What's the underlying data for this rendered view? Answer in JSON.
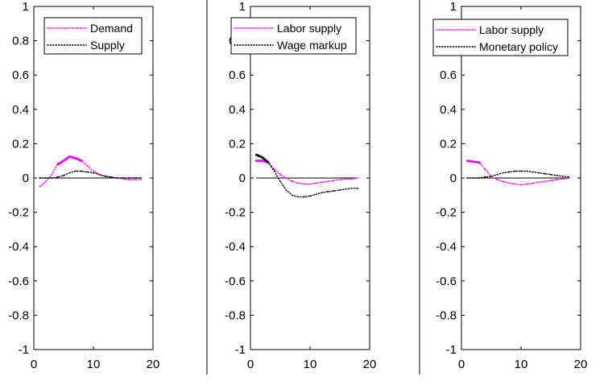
{
  "chart_data": [
    {
      "type": "line",
      "xlim": [
        0,
        20
      ],
      "ylim": [
        -1,
        1
      ],
      "xticks": [
        "0",
        "10",
        "20"
      ],
      "yticks": [
        "-1",
        "-0.8",
        "-0.6",
        "-0.4",
        "-0.2",
        "0",
        "0.2",
        "0.4",
        "0.6",
        "0.8",
        "1"
      ],
      "legend_position": "top-left",
      "zero_line": true,
      "series": [
        {
          "name": "Demand",
          "color": "#ff00ff",
          "style": "dotted",
          "x": [
            1,
            2,
            3,
            4,
            5,
            6,
            7,
            8,
            9,
            10,
            11,
            12,
            13,
            14,
            15,
            16,
            17,
            18
          ],
          "y": [
            -0.05,
            -0.02,
            0.02,
            0.08,
            0.1,
            0.125,
            0.115,
            0.1,
            0.07,
            0.04,
            0.02,
            0.01,
            0.005,
            0.0,
            -0.005,
            -0.01,
            -0.01,
            -0.01
          ],
          "bold_x": [
            4,
            8
          ]
        },
        {
          "name": "Supply",
          "color": "#000000",
          "style": "dotted",
          "x": [
            1,
            2,
            3,
            4,
            5,
            6,
            7,
            8,
            9,
            10,
            11,
            12,
            13,
            14,
            15,
            16,
            17,
            18
          ],
          "y": [
            0.0,
            0.0,
            0.0,
            0.005,
            0.015,
            0.03,
            0.04,
            0.04,
            0.035,
            0.03,
            0.02,
            0.01,
            0.005,
            0.0,
            0.0,
            0.0,
            0.0,
            0.0
          ]
        }
      ]
    },
    {
      "type": "line",
      "xlim": [
        0,
        20
      ],
      "ylim": [
        -1,
        1
      ],
      "xticks": [
        "0",
        "10",
        "20"
      ],
      "yticks": [
        "-1",
        "-0.8",
        "-0.6",
        "-0.4",
        "-0.2",
        "0",
        "0.2",
        "0.4",
        "0.6",
        "0.8",
        "1"
      ],
      "legend_position": "top-left",
      "zero_line": true,
      "series": [
        {
          "name": "Labor supply",
          "color": "#ff00ff",
          "style": "dotted",
          "x": [
            1,
            2,
            3,
            4,
            5,
            6,
            7,
            8,
            9,
            10,
            11,
            12,
            13,
            14,
            15,
            16,
            17,
            18
          ],
          "y": [
            0.1,
            0.1,
            0.09,
            0.05,
            0.02,
            0.0,
            -0.02,
            -0.03,
            -0.035,
            -0.035,
            -0.03,
            -0.025,
            -0.02,
            -0.015,
            -0.01,
            -0.005,
            -0.005,
            0.0
          ],
          "bold_x": [
            1,
            3
          ]
        },
        {
          "name": "Wage markup",
          "color": "#000000",
          "style": "dotted",
          "x": [
            1,
            2,
            3,
            4,
            5,
            6,
            7,
            8,
            9,
            10,
            11,
            12,
            13,
            14,
            15,
            16,
            17,
            18
          ],
          "y": [
            0.135,
            0.12,
            0.09,
            0.04,
            -0.02,
            -0.07,
            -0.1,
            -0.11,
            -0.11,
            -0.105,
            -0.095,
            -0.085,
            -0.08,
            -0.075,
            -0.07,
            -0.065,
            -0.06,
            -0.06
          ],
          "bold_x": [
            1,
            3
          ]
        }
      ]
    },
    {
      "type": "line",
      "xlim": [
        0,
        20
      ],
      "ylim": [
        -1,
        1
      ],
      "xticks": [
        "0",
        "10",
        "20"
      ],
      "yticks": [
        "-1",
        "-0.8",
        "-0.6",
        "-0.4",
        "-0.2",
        "0",
        "0.2",
        "0.4",
        "0.6",
        "0.8",
        "1"
      ],
      "legend_position": "top-left",
      "zero_line": true,
      "series": [
        {
          "name": "Labor supply",
          "color": "#ff00ff",
          "style": "dotted",
          "x": [
            1,
            2,
            3,
            4,
            5,
            6,
            7,
            8,
            9,
            10,
            11,
            12,
            13,
            14,
            15,
            16,
            17,
            18
          ],
          "y": [
            0.1,
            0.095,
            0.09,
            0.05,
            0.01,
            -0.01,
            -0.02,
            -0.03,
            -0.035,
            -0.04,
            -0.035,
            -0.03,
            -0.025,
            -0.02,
            -0.015,
            -0.01,
            -0.005,
            0.0
          ],
          "bold_x": [
            1,
            3
          ]
        },
        {
          "name": "Monetary policy",
          "color": "#000000",
          "style": "dotted",
          "x": [
            1,
            2,
            3,
            4,
            5,
            6,
            7,
            8,
            9,
            10,
            11,
            12,
            13,
            14,
            15,
            16,
            17,
            18
          ],
          "y": [
            0.0,
            0.0,
            0.0,
            0.005,
            0.01,
            0.02,
            0.03,
            0.035,
            0.04,
            0.04,
            0.04,
            0.035,
            0.03,
            0.025,
            0.02,
            0.015,
            0.01,
            0.005
          ]
        }
      ]
    }
  ]
}
